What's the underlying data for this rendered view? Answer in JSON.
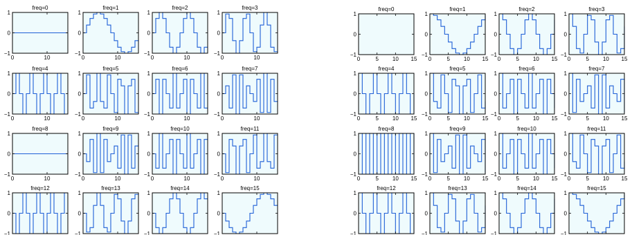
{
  "colors": {
    "line": "#1f5fd6",
    "panel_fill": "#effbfd",
    "frame": "#000000"
  },
  "chart_data": [
    {
      "type": "line",
      "layout": "4x4 small multiples",
      "basis": "sine",
      "n": 16,
      "xlim": [
        0,
        16
      ],
      "ylim": [
        -1,
        1
      ],
      "grid": false,
      "xticks": [
        0,
        10
      ],
      "yticks": [
        -1,
        0,
        1
      ],
      "xtick_labels": [
        "0",
        "10"
      ],
      "ytick_labels": [
        "−1",
        "0",
        "1"
      ],
      "panel_titles": [
        "freq=0",
        "freq=1",
        "freq=2",
        "freq=3",
        "freq=4",
        "freq=5",
        "freq=6",
        "freq=7",
        "freq=8",
        "freq=9",
        "freq=10",
        "freq=11",
        "freq=12",
        "freq=13",
        "freq=14",
        "freq=15"
      ]
    },
    {
      "type": "line",
      "layout": "4x4 small multiples",
      "basis": "cosine",
      "n": 16,
      "xlim": [
        0,
        15
      ],
      "ylim": [
        -1,
        1
      ],
      "grid": false,
      "xticks": [
        0,
        5,
        10,
        15
      ],
      "yticks": [
        -1,
        0,
        1
      ],
      "xtick_labels": [
        "0",
        "5",
        "10",
        "15"
      ],
      "ytick_labels": [
        "−1",
        "0",
        "1"
      ],
      "panel_titles": [
        "freq=0",
        "freq=1",
        "freq=2",
        "freq=3",
        "freq=4",
        "freq=5",
        "freq=6",
        "freq=7",
        "freq=8",
        "freq=9",
        "freq=10",
        "freq=11",
        "freq=12",
        "freq=13",
        "freq=14",
        "freq=15"
      ]
    }
  ]
}
